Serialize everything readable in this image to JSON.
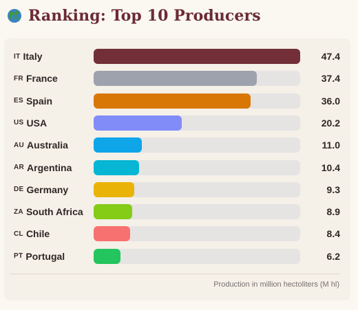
{
  "header": {
    "title": "Ranking: Top 10 Producers",
    "icon": "globe-icon"
  },
  "chart_data": {
    "type": "bar",
    "orientation": "horizontal",
    "title": "Ranking: Top 10 Producers",
    "xlim": [
      0,
      47.4
    ],
    "categories": [
      "Italy",
      "France",
      "Spain",
      "USA",
      "Australia",
      "Argentina",
      "Germany",
      "South Africa",
      "Chile",
      "Portugal"
    ],
    "codes": [
      "IT",
      "FR",
      "ES",
      "US",
      "AU",
      "AR",
      "DE",
      "ZA",
      "CL",
      "PT"
    ],
    "values": [
      47.4,
      37.4,
      36.0,
      20.2,
      11.0,
      10.4,
      9.3,
      8.9,
      8.4,
      6.2
    ],
    "value_labels": [
      "47.4",
      "37.4",
      "36.0",
      "20.2",
      "11.0",
      "10.4",
      "9.3",
      "8.9",
      "8.4",
      "6.2"
    ],
    "colors": [
      "#722f37",
      "#9ea2ad",
      "#d97706",
      "#818cf8",
      "#0ea5e9",
      "#06b6d4",
      "#eab308",
      "#84cc16",
      "#f87171",
      "#22c55e"
    ],
    "track_color": "#e6e3e3",
    "footnote": "Production in million hectoliters (M hl)"
  }
}
